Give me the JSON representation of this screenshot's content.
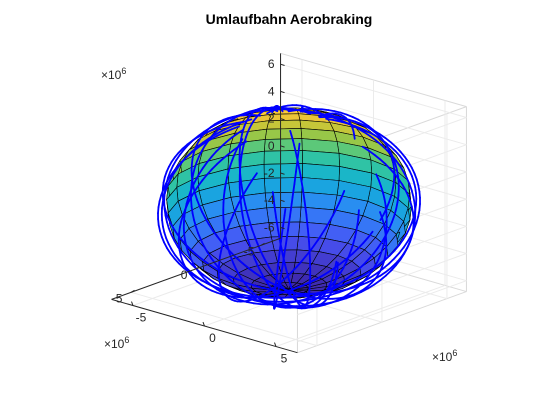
{
  "chart_data": {
    "type": "surface3d",
    "title": "Umlaufbahn Aerobraking",
    "xlabel": "",
    "ylabel": "",
    "zlabel": "",
    "axes": {
      "x": {
        "range": [
          -6500000,
          6500000
        ],
        "ticks": [
          -5,
          0,
          5
        ],
        "multiplier": "×10",
        "exponent": "6"
      },
      "y": {
        "range": [
          -6500000,
          6500000
        ],
        "ticks": [
          -5,
          0,
          5
        ],
        "multiplier": "×10",
        "exponent": "6"
      },
      "z": {
        "range": [
          -6800000,
          6800000
        ],
        "ticks": [
          -6,
          -4,
          -2,
          0,
          2,
          4,
          6
        ],
        "multiplier": "×10",
        "exponent": "6"
      }
    },
    "grid": true,
    "surface": {
      "shape": "sphere",
      "radius": 6371000,
      "latitude_bands": 20,
      "longitude_bands": 20,
      "colormap": "parula",
      "edge_color": "#000000"
    },
    "orbit": {
      "color": "#0000ff",
      "approx_loops": 14,
      "apoapsis_radius": 7100000,
      "periapsis_radius": 6450000
    },
    "tick_labels": {
      "z": [
        "-6",
        "-4",
        "-2",
        "0",
        "2",
        "4",
        "6"
      ],
      "x": [
        "-5",
        "0",
        "5"
      ],
      "y": [
        "-5",
        "0",
        "5"
      ]
    }
  }
}
